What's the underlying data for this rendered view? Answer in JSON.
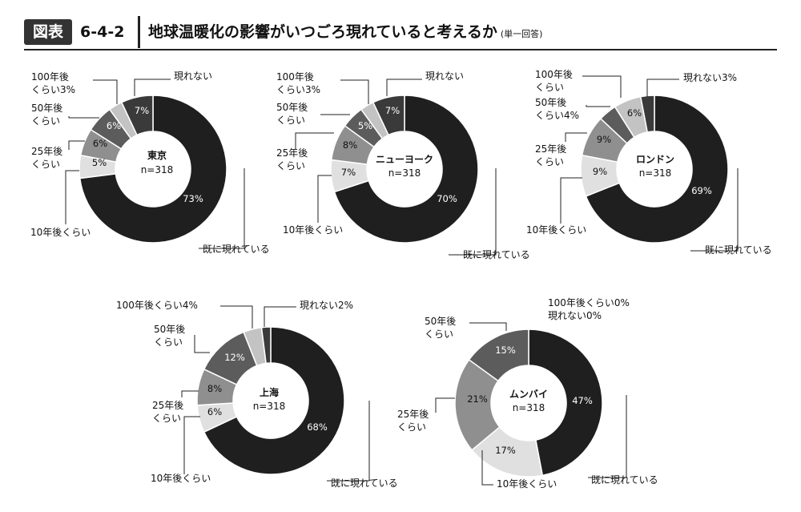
{
  "figure": {
    "badge": "図表",
    "number": "6-4-2",
    "title": "地球温暖化の影響がいつごろ現れていると考えるか",
    "note": "(単一回答)"
  },
  "colors": {
    "既に現れている": "#1f1f1f",
    "10年後くらい": "#e0e0e0",
    "25年後くらい": "#8f8f8f",
    "50年後くらい": "#5c5c5c",
    "100年後くらい": "#c3c3c3",
    "現れない": "#3a3a3a"
  },
  "chart_data": [
    {
      "type": "donut",
      "city": "東京",
      "n": "n=318",
      "slices": [
        {
          "category": "既に現れている",
          "value": 73,
          "label": "73%",
          "legend": [
            "既に現れている"
          ]
        },
        {
          "category": "10年後くらい",
          "value": 5,
          "label": "5%",
          "legend": [
            "10年後くらい"
          ]
        },
        {
          "category": "25年後くらい",
          "value": 6,
          "label": "6%",
          "legend": [
            "25年後",
            "くらい"
          ]
        },
        {
          "category": "50年後くらい",
          "value": 6,
          "label": "6%",
          "legend": [
            "50年後",
            "くらい"
          ]
        },
        {
          "category": "100年後くらい",
          "value": 3,
          "label": "",
          "legend": [
            "100年後",
            "くらい3%"
          ]
        },
        {
          "category": "現れない",
          "value": 7,
          "label": "7%",
          "legend": [
            "現れない"
          ]
        }
      ]
    },
    {
      "type": "donut",
      "city": "ニューヨーク",
      "n": "n=318",
      "slices": [
        {
          "category": "既に現れている",
          "value": 70,
          "label": "70%",
          "legend": [
            "既に現れている"
          ]
        },
        {
          "category": "10年後くらい",
          "value": 7,
          "label": "7%",
          "legend": [
            "10年後くらい"
          ]
        },
        {
          "category": "25年後くらい",
          "value": 8,
          "label": "8%",
          "legend": [
            "25年後",
            "くらい"
          ]
        },
        {
          "category": "50年後くらい",
          "value": 5,
          "label": "5%",
          "legend": [
            "50年後",
            "くらい"
          ]
        },
        {
          "category": "100年後くらい",
          "value": 3,
          "label": "",
          "legend": [
            "100年後",
            "くらい3%"
          ]
        },
        {
          "category": "現れない",
          "value": 7,
          "label": "7%",
          "legend": [
            "現れない"
          ]
        }
      ]
    },
    {
      "type": "donut",
      "city": "ロンドン",
      "n": "n=318",
      "slices": [
        {
          "category": "既に現れている",
          "value": 69,
          "label": "69%",
          "legend": [
            "既に現れている"
          ]
        },
        {
          "category": "10年後くらい",
          "value": 9,
          "label": "9%",
          "legend": [
            "10年後くらい"
          ]
        },
        {
          "category": "25年後くらい",
          "value": 9,
          "label": "9%",
          "legend": [
            "25年後",
            "くらい"
          ]
        },
        {
          "category": "50年後くらい",
          "value": 4,
          "label": "",
          "legend": [
            "50年後",
            "くらい4%"
          ]
        },
        {
          "category": "100年後くらい",
          "value": 6,
          "label": "6%",
          "legend": [
            "100年後",
            "くらい"
          ]
        },
        {
          "category": "現れない",
          "value": 3,
          "label": "",
          "legend": [
            "現れない3%"
          ]
        }
      ]
    },
    {
      "type": "donut",
      "city": "上海",
      "n": "n=318",
      "slices": [
        {
          "category": "既に現れている",
          "value": 68,
          "label": "68%",
          "legend": [
            "既に現れている"
          ]
        },
        {
          "category": "10年後くらい",
          "value": 6,
          "label": "6%",
          "legend": [
            "10年後くらい"
          ]
        },
        {
          "category": "25年後くらい",
          "value": 8,
          "label": "8%",
          "legend": [
            "25年後",
            "くらい"
          ]
        },
        {
          "category": "50年後くらい",
          "value": 12,
          "label": "12%",
          "legend": [
            "50年後",
            "くらい"
          ]
        },
        {
          "category": "100年後くらい",
          "value": 4,
          "label": "",
          "legend": [
            "100年後くらい4%"
          ]
        },
        {
          "category": "現れない",
          "value": 2,
          "label": "",
          "legend": [
            "現れない2%"
          ]
        }
      ]
    },
    {
      "type": "donut",
      "city": "ムンバイ",
      "n": "n=318",
      "note": [
        "100年後くらい0%",
        "現れない0%"
      ],
      "slices": [
        {
          "category": "既に現れている",
          "value": 47,
          "label": "47%",
          "legend": [
            "既に現れている"
          ]
        },
        {
          "category": "10年後くらい",
          "value": 17,
          "label": "17%",
          "legend": [
            "10年後くらい"
          ]
        },
        {
          "category": "25年後くらい",
          "value": 21,
          "label": "21%",
          "legend": [
            "25年後",
            "くらい"
          ]
        },
        {
          "category": "50年後くらい",
          "value": 15,
          "label": "15%",
          "legend": [
            "50年後",
            "くらい"
          ]
        },
        {
          "category": "100年後くらい",
          "value": 0,
          "label": "",
          "legend": []
        },
        {
          "category": "現れない",
          "value": 0,
          "label": "",
          "legend": []
        }
      ]
    }
  ]
}
